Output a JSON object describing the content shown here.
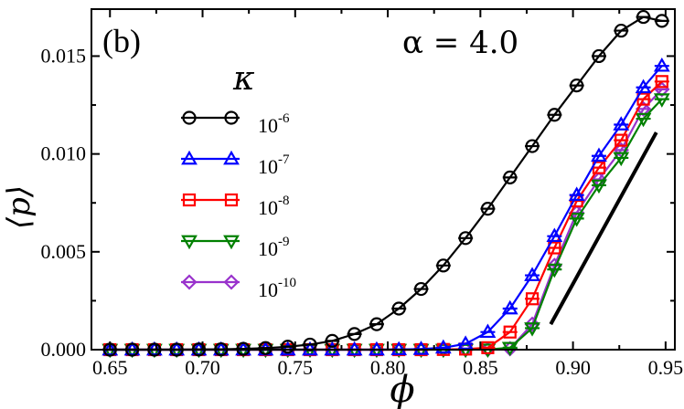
{
  "chart_data": {
    "type": "line",
    "panel_label": "(b)",
    "annotation": "α = 4.0",
    "xlabel": "ϕ",
    "ylabel": "⟨p⟩",
    "legend_title": "κ",
    "xlim": [
      0.64,
      0.955
    ],
    "ylim": [
      0.0,
      0.0174
    ],
    "xticks": [
      0.65,
      0.7,
      0.75,
      0.8,
      0.85,
      0.9,
      0.95
    ],
    "xtick_labels": [
      "0.65",
      "0.70",
      "0.75",
      "0.80",
      "0.85",
      "0.90",
      "0.95"
    ],
    "yticks": [
      0.0,
      0.005,
      0.01,
      0.015
    ],
    "ytick_labels": [
      "0.000",
      "0.005",
      "0.010",
      "0.015"
    ],
    "reference_line": {
      "x": [
        0.888,
        0.945
      ],
      "y": [
        0.0013,
        0.0111
      ],
      "color": "#000000"
    },
    "series": [
      {
        "name": "10-6",
        "base": "10",
        "exponent": "-6",
        "marker": "circle",
        "color": "#000000",
        "x": [
          0.65,
          0.662,
          0.674,
          0.686,
          0.698,
          0.71,
          0.722,
          0.734,
          0.746,
          0.758,
          0.77,
          0.782,
          0.794,
          0.806,
          0.818,
          0.83,
          0.842,
          0.854,
          0.866,
          0.878,
          0.89,
          0.902,
          0.914,
          0.926,
          0.938,
          0.948
        ],
        "y": [
          0.0,
          0.0,
          0.0,
          0.0,
          1e-05,
          2e-05,
          4e-05,
          8e-05,
          0.00015,
          0.00026,
          0.00045,
          0.0008,
          0.0013,
          0.0021,
          0.0031,
          0.0043,
          0.0057,
          0.0072,
          0.0088,
          0.0104,
          0.012,
          0.0135,
          0.015,
          0.0163,
          0.017,
          0.0168
        ]
      },
      {
        "name": "10-7",
        "base": "10",
        "exponent": "-7",
        "marker": "triangle-up",
        "color": "#0000ff",
        "x": [
          0.65,
          0.662,
          0.674,
          0.686,
          0.698,
          0.71,
          0.722,
          0.734,
          0.746,
          0.758,
          0.77,
          0.782,
          0.794,
          0.806,
          0.818,
          0.83,
          0.842,
          0.854,
          0.866,
          0.878,
          0.89,
          0.902,
          0.914,
          0.926,
          0.938,
          0.948
        ],
        "y": [
          0.0,
          0.0,
          0.0,
          0.0,
          0.0,
          0.0,
          0.0,
          0.0,
          0.0,
          0.0,
          0.0,
          0.0,
          0.0,
          1e-05,
          3e-05,
          0.0001,
          0.0003,
          0.0009,
          0.0021,
          0.0038,
          0.0058,
          0.0079,
          0.0099,
          0.0115,
          0.0134,
          0.0145
        ]
      },
      {
        "name": "10-8",
        "base": "10",
        "exponent": "-8",
        "marker": "square",
        "color": "#ff0000",
        "x": [
          0.65,
          0.662,
          0.674,
          0.686,
          0.698,
          0.71,
          0.722,
          0.734,
          0.746,
          0.758,
          0.77,
          0.782,
          0.794,
          0.806,
          0.818,
          0.83,
          0.842,
          0.854,
          0.866,
          0.878,
          0.89,
          0.902,
          0.914,
          0.926,
          0.938,
          0.948
        ],
        "y": [
          0.0,
          0.0,
          0.0,
          0.0,
          0.0,
          0.0,
          0.0,
          0.0,
          0.0,
          0.0,
          0.0,
          0.0,
          0.0,
          0.0,
          0.0,
          1e-05,
          3e-05,
          0.0001,
          0.0009,
          0.0026,
          0.0052,
          0.0076,
          0.0093,
          0.0107,
          0.0128,
          0.0137
        ]
      },
      {
        "name": "10-9",
        "base": "10",
        "exponent": "-9",
        "marker": "triangle-down",
        "color": "#008000",
        "x": [
          0.65,
          0.662,
          0.674,
          0.686,
          0.698,
          0.71,
          0.722,
          0.734,
          0.746,
          0.758,
          0.77,
          0.782,
          0.794,
          0.806,
          0.818,
          0.83,
          0.842,
          0.854,
          0.866,
          0.878,
          0.89,
          0.902,
          0.914,
          0.926,
          0.938,
          0.948
        ],
        "y": [
          0.0,
          0.0,
          0.0,
          0.0,
          0.0,
          0.0,
          0.0,
          0.0,
          0.0,
          0.0,
          0.0,
          0.0,
          0.0,
          0.0,
          0.0,
          0.0,
          0.0,
          1e-05,
          0.0001,
          0.0011,
          0.0041,
          0.0067,
          0.0084,
          0.0098,
          0.0118,
          0.0128
        ]
      },
      {
        "name": "10-10",
        "base": "10",
        "exponent": "-10",
        "marker": "diamond",
        "color": "#9932cc",
        "x": [
          0.65,
          0.662,
          0.674,
          0.686,
          0.698,
          0.71,
          0.722,
          0.734,
          0.746,
          0.758,
          0.77,
          0.782,
          0.794,
          0.806,
          0.818,
          0.83,
          0.842,
          0.854,
          0.866,
          0.878,
          0.89,
          0.902,
          0.914,
          0.926,
          0.938,
          0.948
        ],
        "y": [
          0.0,
          0.0,
          0.0,
          0.0,
          0.0,
          0.0,
          0.0,
          0.0,
          0.0,
          0.0,
          0.0,
          0.0,
          0.0,
          0.0,
          0.0,
          0.0,
          0.0,
          1e-05,
          5e-05,
          0.0013,
          0.0043,
          0.007,
          0.0087,
          0.0102,
          0.0123,
          0.0133
        ]
      }
    ]
  }
}
